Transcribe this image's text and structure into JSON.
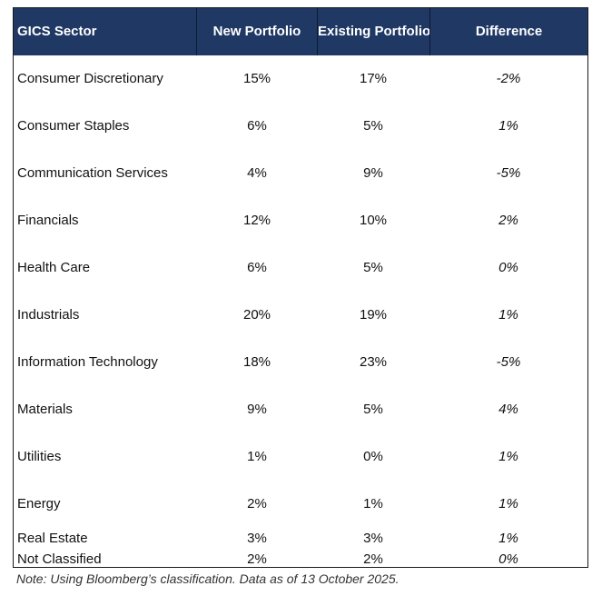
{
  "table": {
    "headers": [
      "GICS Sector",
      "New Portfolio",
      "Existing Portfolio",
      "Difference"
    ],
    "rows": [
      {
        "sector": "Consumer Discretionary",
        "new": "15%",
        "existing": "17%",
        "difference": "-2%"
      },
      {
        "sector": "Consumer Staples",
        "new": "6%",
        "existing": "5%",
        "difference": "1%"
      },
      {
        "sector": "Communication Services",
        "new": "4%",
        "existing": "9%",
        "difference": "-5%"
      },
      {
        "sector": "Financials",
        "new": "12%",
        "existing": "10%",
        "difference": "2%"
      },
      {
        "sector": "Health Care",
        "new": "6%",
        "existing": "5%",
        "difference": "0%"
      },
      {
        "sector": "Industrials",
        "new": "20%",
        "existing": "19%",
        "difference": "1%"
      },
      {
        "sector": "Information Technology",
        "new": "18%",
        "existing": "23%",
        "difference": "-5%"
      },
      {
        "sector": "Materials",
        "new": "9%",
        "existing": "5%",
        "difference": "4%"
      },
      {
        "sector": "Utilities",
        "new": "1%",
        "existing": "0%",
        "difference": "1%"
      },
      {
        "sector": "Energy",
        "new": "2%",
        "existing": "1%",
        "difference": "1%"
      },
      {
        "sector": "Real Estate",
        "new": "3%",
        "existing": "3%",
        "difference": "1%"
      },
      {
        "sector": "Not Classified",
        "new": "2%",
        "existing": "2%",
        "difference": "0%"
      }
    ]
  },
  "note": "Note: Using Bloomberg’s classification. Data as of 13 October 2025.",
  "colors": {
    "header_bg": "#1f3864",
    "header_text": "#ffffff"
  }
}
